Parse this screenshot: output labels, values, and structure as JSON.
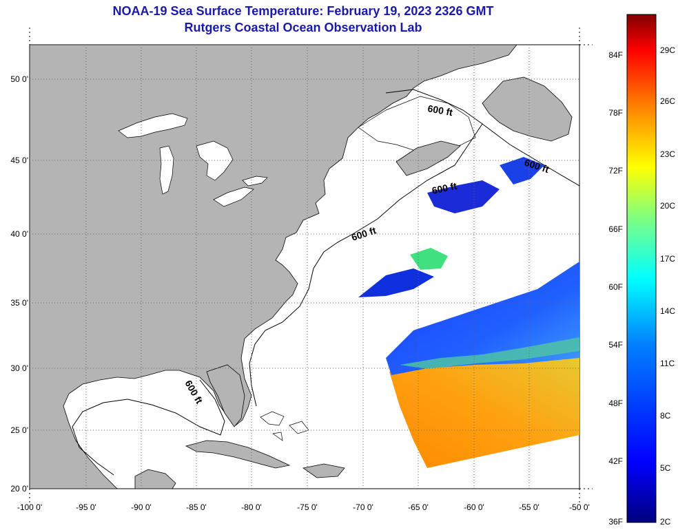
{
  "title_line1": "NOAA-19 Sea Surface Temperature:  February 19, 2023 2326 GMT",
  "title_line2": "Rutgers Coastal Ocean Observation Lab",
  "lat_labels": [
    "50 0'",
    "45 0'",
    "40 0'",
    "35 0'",
    "30 0'",
    "25 0'",
    "20 0'"
  ],
  "lon_labels": [
    "-100 0'",
    "-95 0'",
    "-90 0'",
    "-85 0'",
    "-80 0'",
    "-75 0'",
    "-70 0'",
    "-65 0'",
    "-60 0'",
    "-55 0'",
    "-50 0'"
  ],
  "contour_label": "600 ft",
  "colorbar": {
    "fahrenheit": [
      "84F",
      "78F",
      "72F",
      "66F",
      "60F",
      "54F",
      "48F",
      "42F",
      "36F"
    ],
    "celsius": [
      "29C",
      "26C",
      "23C",
      "20C",
      "17C",
      "14C",
      "11C",
      "8C",
      "5C",
      "2C"
    ],
    "colors": [
      "#7f0000",
      "#ff0000",
      "#ff8000",
      "#ffff00",
      "#80ff80",
      "#00ffff",
      "#0080ff",
      "#0000ff",
      "#00007f"
    ]
  },
  "colors": {
    "land": "#b4b4b4",
    "ocean": "#ffffff",
    "title": "#1a1aa8"
  }
}
